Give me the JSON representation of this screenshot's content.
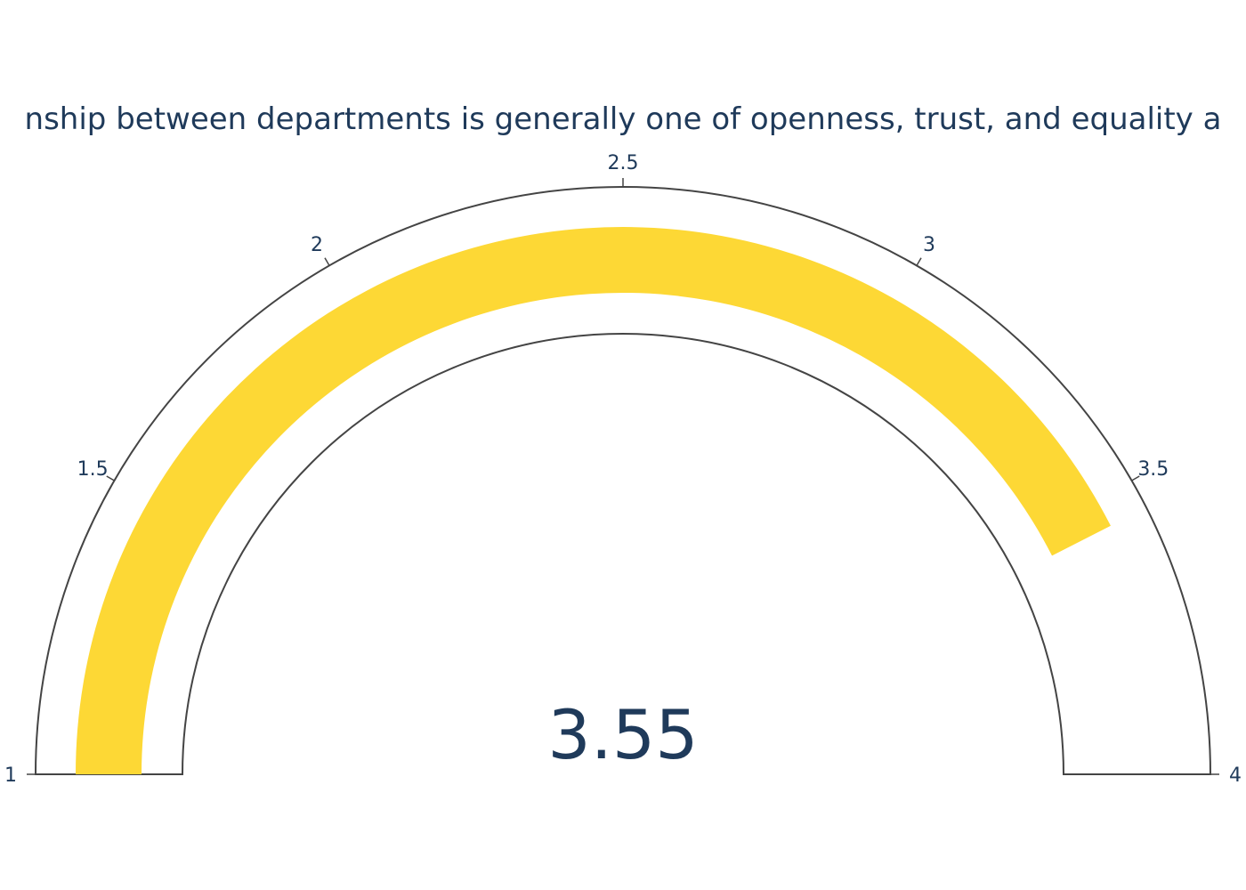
{
  "chart_data": {
    "type": "gauge",
    "title": "nship between departments is generally one of openness, trust, and equality a",
    "value": 3.55,
    "value_label": "3.55",
    "range": [
      1,
      4
    ],
    "ticks": [
      1,
      1.5,
      2,
      2.5,
      3,
      3.5,
      4
    ],
    "tick_labels": [
      "1",
      "1.5",
      "2",
      "2.5",
      "3",
      "3.5",
      "4"
    ],
    "bar_color": "#FDD835",
    "text_color": "#1F3A5A",
    "outline_color": "#444444"
  }
}
